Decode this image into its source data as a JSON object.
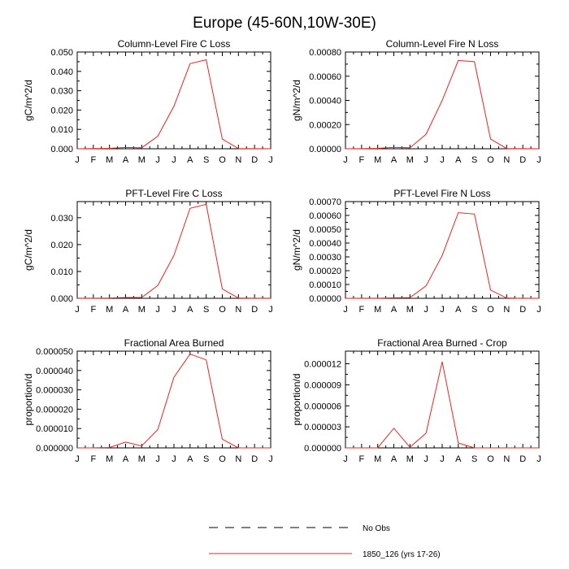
{
  "figure_title": "Europe (45-60N,10W-30E)",
  "legend": [
    {
      "label": "No Obs",
      "style": "dashed",
      "color": "#000000"
    },
    {
      "label": "1850_126 (yrs 17-26)",
      "style": "solid",
      "color": "#e8231f"
    }
  ],
  "colors": {
    "series": "#e8231f",
    "axes": "#000000"
  },
  "chart_data": [
    {
      "type": "line",
      "title": "Column-Level Fire C Loss",
      "xlabel": "",
      "ylabel": "gC/m^2/d",
      "categories": [
        "J",
        "F",
        "M",
        "A",
        "M",
        "J",
        "J",
        "A",
        "S",
        "O",
        "N",
        "D",
        "J"
      ],
      "ylim": [
        0,
        0.05
      ],
      "yticks": [
        "0.000",
        "0.010",
        "0.020",
        "0.030",
        "0.040",
        "0.050"
      ],
      "grid": false,
      "series": [
        {
          "name": "1850_126 (yrs 17-26)",
          "values": [
            2e-05,
            8e-05,
            0.0002,
            0.0007,
            0.0005,
            0.0065,
            0.022,
            0.044,
            0.046,
            0.005,
            0.0001,
            3e-05,
            2e-05
          ]
        }
      ]
    },
    {
      "type": "line",
      "title": "Column-Level Fire N Loss",
      "xlabel": "",
      "ylabel": "gN/m^2/d",
      "categories": [
        "J",
        "F",
        "M",
        "A",
        "M",
        "J",
        "J",
        "A",
        "S",
        "O",
        "N",
        "D",
        "J"
      ],
      "ylim": [
        0,
        0.0008
      ],
      "yticks": [
        "0.00000",
        "0.00020",
        "0.00040",
        "0.00060",
        "0.00080"
      ],
      "grid": false,
      "series": [
        {
          "name": "1850_126 (yrs 17-26)",
          "values": [
            3e-07,
            1e-06,
            3e-06,
            1.2e-05,
            8e-06,
            0.00012,
            0.0004,
            0.00073,
            0.00072,
            8e-05,
            2e-06,
            5e-07,
            3e-07
          ]
        }
      ]
    },
    {
      "type": "line",
      "title": "PFT-Level Fire C Loss",
      "xlabel": "",
      "ylabel": "gC/m^2/d",
      "categories": [
        "J",
        "F",
        "M",
        "A",
        "M",
        "J",
        "J",
        "A",
        "S",
        "O",
        "N",
        "D",
        "J"
      ],
      "ylim": [
        0,
        0.036
      ],
      "yticks": [
        "0.000",
        "0.010",
        "0.020",
        "0.030"
      ],
      "grid": false,
      "series": [
        {
          "name": "1850_126 (yrs 17-26)",
          "values": [
            2e-05,
            5e-05,
            0.0001,
            0.0003,
            0.0003,
            0.0048,
            0.016,
            0.0335,
            0.035,
            0.0035,
            0.0001,
            2e-05,
            2e-05
          ]
        }
      ]
    },
    {
      "type": "line",
      "title": "PFT-Level Fire N Loss",
      "xlabel": "",
      "ylabel": "gN/m^2/d",
      "categories": [
        "J",
        "F",
        "M",
        "A",
        "M",
        "J",
        "J",
        "A",
        "S",
        "O",
        "N",
        "D",
        "J"
      ],
      "ylim": [
        0,
        0.0007
      ],
      "yticks": [
        "0.00000",
        "0.00010",
        "0.00020",
        "0.00030",
        "0.00040",
        "0.00050",
        "0.00060",
        "0.00070"
      ],
      "grid": false,
      "series": [
        {
          "name": "1850_126 (yrs 17-26)",
          "values": [
            2e-07,
            5e-07,
            1e-06,
            4e-06,
            5e-06,
            9e-05,
            0.00031,
            0.00062,
            0.00061,
            6e-05,
            2e-06,
            5e-07,
            2e-07
          ]
        }
      ]
    },
    {
      "type": "line",
      "title": "Fractional Area Burned",
      "xlabel": "",
      "ylabel": "proportion/d",
      "categories": [
        "J",
        "F",
        "M",
        "A",
        "M",
        "J",
        "J",
        "A",
        "S",
        "O",
        "N",
        "D",
        "J"
      ],
      "ylim": [
        0,
        5e-05
      ],
      "yticks": [
        "0.000000",
        "0.000010",
        "0.000020",
        "0.000030",
        "0.000040",
        "0.000050"
      ],
      "grid": false,
      "series": [
        {
          "name": "1850_126 (yrs 17-26)",
          "values": [
            0.0,
            0.0,
            2e-07,
            3e-06,
            1e-06,
            9.5e-06,
            3.65e-05,
            4.85e-05,
            4.55e-05,
            4.5e-06,
            0.0,
            0.0,
            0.0
          ]
        }
      ]
    },
    {
      "type": "line",
      "title": "Fractional Area Burned - Crop",
      "xlabel": "",
      "ylabel": "proportion/d",
      "categories": [
        "J",
        "F",
        "M",
        "A",
        "M",
        "J",
        "J",
        "A",
        "S",
        "O",
        "N",
        "D",
        "J"
      ],
      "ylim": [
        0,
        1.38e-05
      ],
      "yticks": [
        "0.000000",
        "0.000003",
        "0.000006",
        "0.000009",
        "0.000012"
      ],
      "grid": false,
      "series": [
        {
          "name": "1850_126 (yrs 17-26)",
          "values": [
            0.0,
            0.0,
            0.0,
            2.8e-06,
            1e-07,
            2.1e-06,
            1.23e-05,
            7e-07,
            0.0,
            0.0,
            0.0,
            0.0,
            0.0
          ]
        }
      ]
    }
  ]
}
